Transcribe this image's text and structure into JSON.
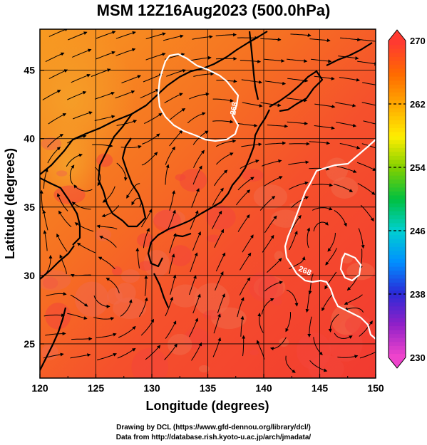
{
  "title": "MSM 12Z16Aug2023 (500.0hPa)",
  "x_axis": {
    "label": "Longitude (degrees)",
    "ticks": [
      "120",
      "125",
      "130",
      "135",
      "140",
      "145",
      "150"
    ],
    "range": [
      120,
      150
    ]
  },
  "y_axis": {
    "label": "Latitude  (degrees)",
    "ticks": [
      "25",
      "30",
      "35",
      "40",
      "45"
    ],
    "range": [
      22.5,
      48
    ]
  },
  "colorbar": {
    "ticks": [
      "230",
      "238",
      "246",
      "254",
      "262",
      "270"
    ],
    "range": [
      230,
      270
    ],
    "colors": [
      "#ee44cc",
      "#9020c8",
      "#2a2ad8",
      "#0090ff",
      "#00d0d0",
      "#00c040",
      "#80d000",
      "#ffee00",
      "#ffaa00",
      "#ff6a00",
      "#ff3a30"
    ]
  },
  "contour_labels": [
    "268",
    "268"
  ],
  "credits": {
    "line1": "Drawing by DCL (https://www.gfd-dennou.org/library/dcl/)",
    "line2": "Data from http://database.rish.kyoto-u.ac.jp/arch/jmadata/"
  }
}
